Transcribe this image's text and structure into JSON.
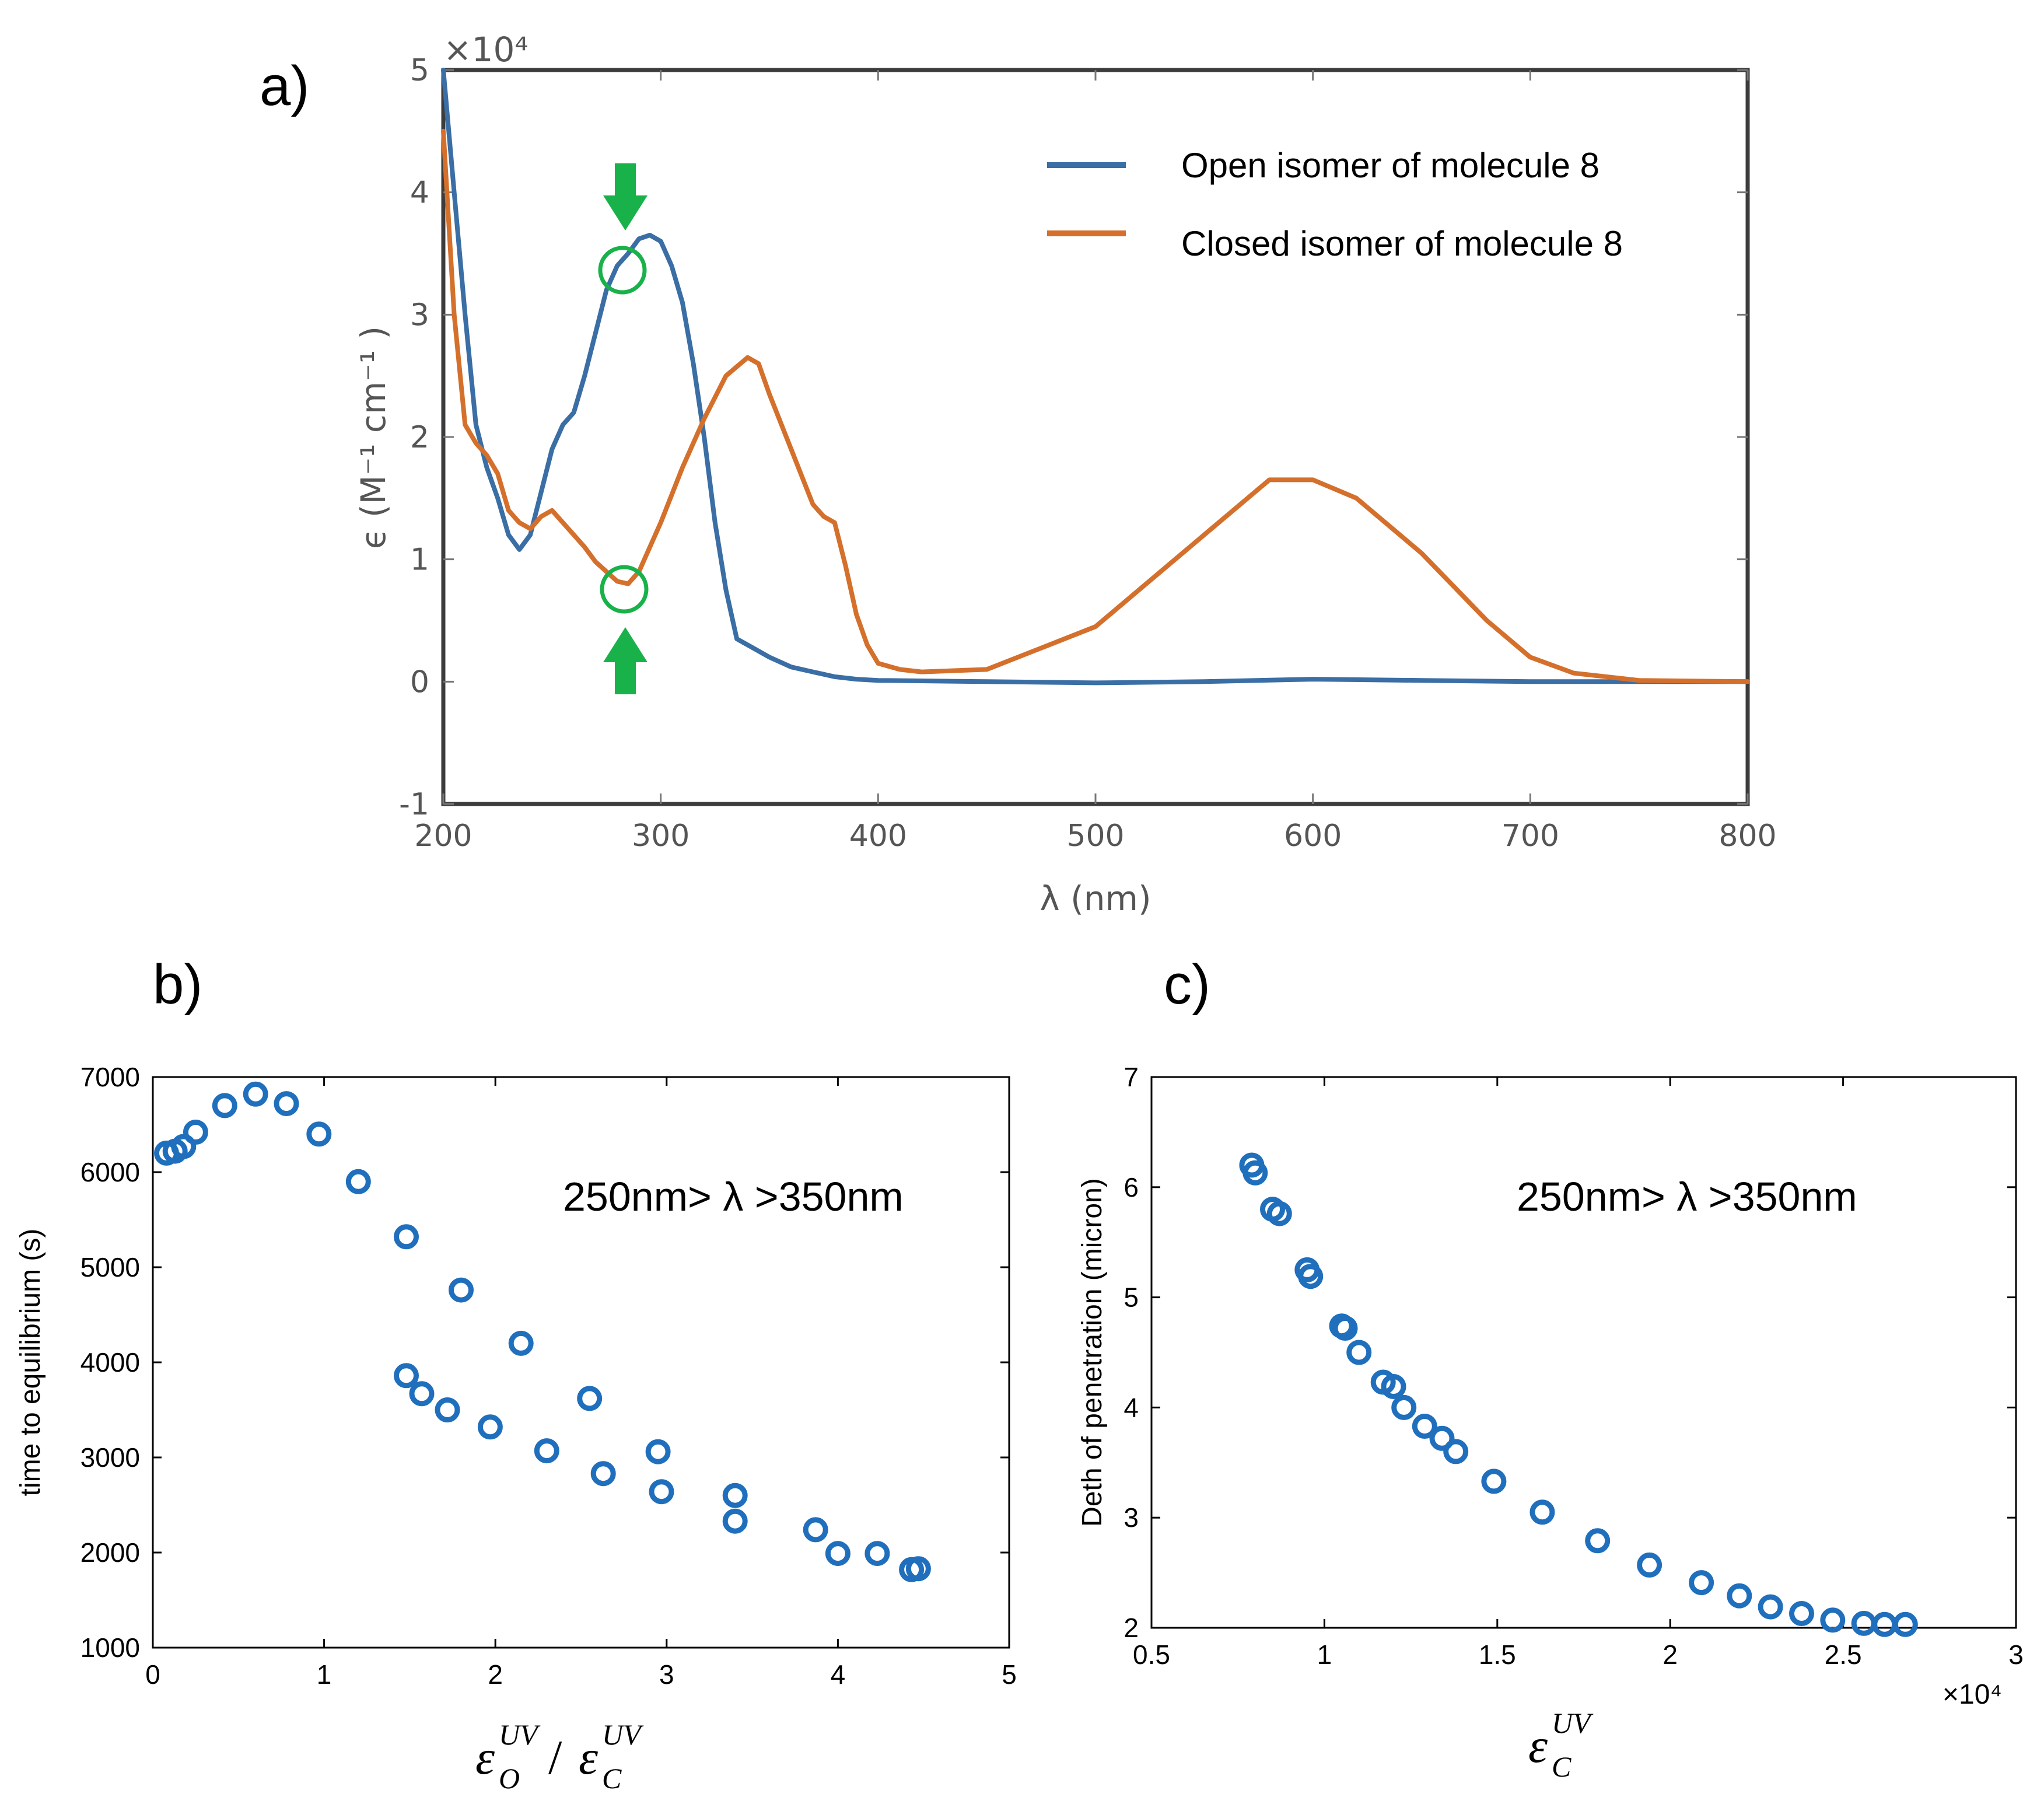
{
  "chart_data": [
    {
      "panel": "a)",
      "type": "line",
      "xlabel": "λ (nm)",
      "ylabel": "ϵ (M⁻¹ cm⁻¹ )",
      "exponent_label": "×10⁴",
      "xlim": [
        200,
        800
      ],
      "ylim": [
        -1,
        5
      ],
      "xticks": [
        "200",
        "300",
        "400",
        "500",
        "600",
        "700",
        "800"
      ],
      "yticks": [
        "-1",
        "0",
        "1",
        "2",
        "3",
        "4",
        "5"
      ],
      "legend_position": "top-right",
      "series": [
        {
          "name": "Open isomer of molecule 8",
          "color": "#3a6ea5",
          "x": [
            200,
            205,
            210,
            215,
            220,
            225,
            230,
            235,
            240,
            245,
            250,
            255,
            260,
            265,
            270,
            275,
            280,
            285,
            290,
            295,
            300,
            305,
            310,
            315,
            320,
            325,
            330,
            335,
            340,
            350,
            360,
            370,
            380,
            390,
            400,
            450,
            500,
            550,
            600,
            650,
            700,
            750,
            800
          ],
          "y": [
            5.0,
            4.0,
            3.0,
            2.1,
            1.75,
            1.5,
            1.2,
            1.08,
            1.2,
            1.55,
            1.9,
            2.1,
            2.2,
            2.5,
            2.85,
            3.2,
            3.4,
            3.5,
            3.62,
            3.65,
            3.6,
            3.4,
            3.1,
            2.6,
            2.0,
            1.3,
            0.75,
            0.35,
            0.3,
            0.2,
            0.12,
            0.08,
            0.04,
            0.02,
            0.01,
            0.0,
            -0.01,
            0.0,
            0.02,
            0.01,
            0.0,
            0.0,
            0.0
          ]
        },
        {
          "name": "Closed isomer of molecule 8",
          "color": "#d4702c",
          "x": [
            200,
            205,
            210,
            215,
            220,
            225,
            230,
            235,
            240,
            245,
            250,
            255,
            260,
            265,
            270,
            275,
            280,
            285,
            290,
            295,
            300,
            310,
            320,
            330,
            340,
            345,
            350,
            360,
            370,
            375,
            380,
            385,
            390,
            395,
            400,
            410,
            420,
            450,
            500,
            550,
            580,
            600,
            620,
            650,
            680,
            700,
            720,
            750,
            800
          ],
          "y": [
            4.5,
            3.0,
            2.1,
            1.95,
            1.85,
            1.7,
            1.4,
            1.3,
            1.25,
            1.35,
            1.4,
            1.3,
            1.2,
            1.1,
            0.98,
            0.9,
            0.82,
            0.8,
            0.9,
            1.1,
            1.3,
            1.75,
            2.15,
            2.5,
            2.65,
            2.6,
            2.35,
            1.9,
            1.45,
            1.35,
            1.3,
            0.95,
            0.55,
            0.3,
            0.15,
            0.1,
            0.08,
            0.1,
            0.45,
            1.2,
            1.65,
            1.65,
            1.5,
            1.05,
            0.5,
            0.2,
            0.07,
            0.01,
            0.0
          ]
        }
      ]
    },
    {
      "panel": "b)",
      "type": "scatter",
      "xlabel_base": "ε",
      "xlabel_sub1": "O",
      "xlabel_sub2": "C",
      "xlabel_sup": "UV",
      "xlabel_slash": "/",
      "ylabel": "time to equilibrium (s)",
      "annotation": "250nm> λ >350nm",
      "xlim": [
        0,
        5
      ],
      "ylim": [
        1000,
        7000
      ],
      "xticks": [
        "0",
        "1",
        "2",
        "3",
        "4",
        "5"
      ],
      "yticks": [
        "1000",
        "2000",
        "3000",
        "4000",
        "5000",
        "6000",
        "7000"
      ],
      "color": "#1f6fbd",
      "x": [
        0.08,
        0.13,
        0.18,
        0.25,
        0.42,
        0.6,
        0.78,
        0.97,
        1.2,
        1.48,
        1.8,
        2.15,
        2.55,
        2.95,
        3.4,
        1.48,
        1.57,
        1.72,
        1.97,
        2.3,
        2.63,
        2.97,
        3.4,
        3.87,
        4.0,
        4.23,
        4.43,
        4.47
      ],
      "y": [
        6200,
        6220,
        6270,
        6420,
        6700,
        6820,
        6720,
        6400,
        5900,
        5320,
        4760,
        4200,
        3620,
        3060,
        2600,
        3860,
        3670,
        3500,
        3320,
        3070,
        2830,
        2640,
        2330,
        2240,
        1990,
        1990,
        1820,
        1830
      ]
    },
    {
      "panel": "c)",
      "type": "scatter",
      "xlabel_base": "ε",
      "xlabel_sub": "C",
      "xlabel_sup": "UV",
      "ylabel": "Deth of penetration (micron)",
      "annotation": "250nm> λ >350nm",
      "exponent_label": "×10⁴",
      "xlim": [
        0.5,
        3.0
      ],
      "ylim": [
        2,
        7
      ],
      "xticks": [
        "0.5",
        "1",
        "1.5",
        "2",
        "2.5",
        "3"
      ],
      "yticks": [
        "2",
        "3",
        "4",
        "5",
        "6",
        "7"
      ],
      "color": "#1f6fbd",
      "x": [
        0.79,
        0.8,
        0.85,
        0.87,
        0.95,
        0.96,
        1.05,
        1.06,
        1.1,
        1.17,
        1.2,
        1.23,
        1.29,
        1.34,
        1.38,
        1.49,
        1.63,
        1.79,
        1.94,
        2.09,
        2.2,
        2.29,
        2.38,
        2.47,
        2.56,
        2.62,
        2.68
      ],
      "y": [
        6.2,
        6.13,
        5.8,
        5.76,
        5.25,
        5.19,
        4.74,
        4.72,
        4.5,
        4.23,
        4.19,
        4.0,
        3.83,
        3.72,
        3.6,
        3.33,
        3.05,
        2.79,
        2.57,
        2.41,
        2.29,
        2.19,
        2.13,
        2.07,
        2.04,
        2.03,
        2.03
      ]
    }
  ]
}
